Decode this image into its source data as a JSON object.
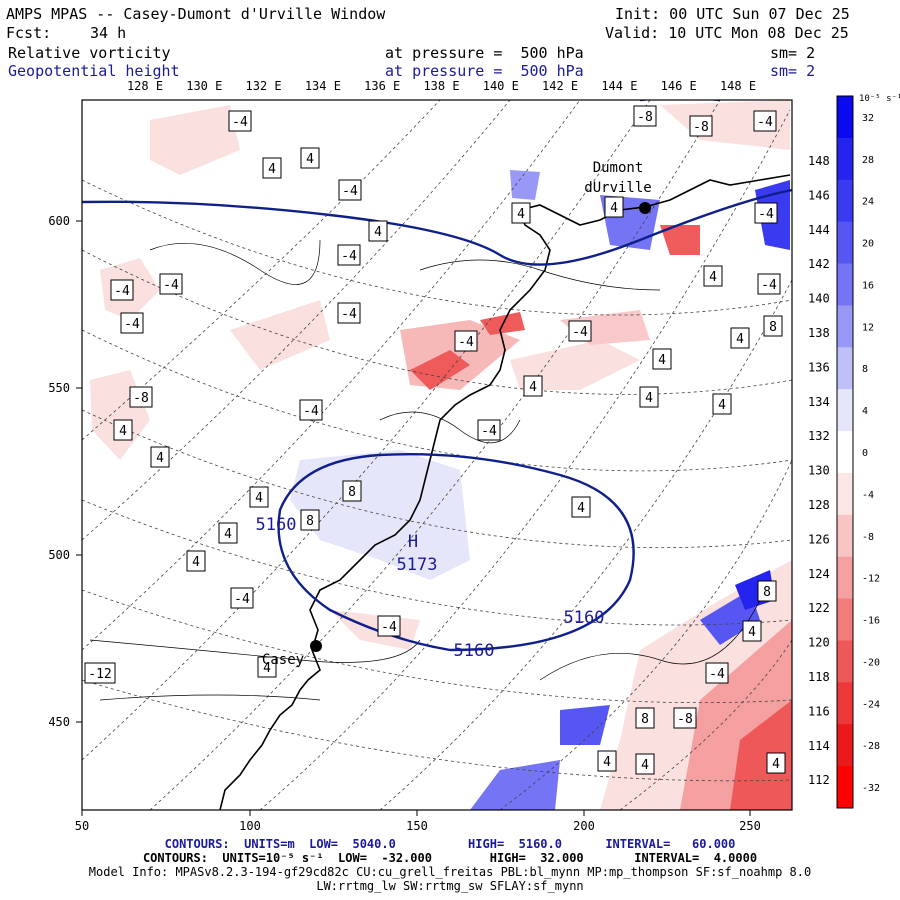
{
  "header": {
    "title": "AMPS MPAS -- Casey-Dumont d'Urville Window",
    "init": "Init: 00 UTC Sun 07 Dec 25",
    "fcst_label": "Fcst:",
    "fcst_value": "34 h",
    "valid": "Valid: 10 UTC Mon 08 Dec 25",
    "field1_name": "Relative vorticity",
    "field1_level": "at pressure =  500 hPa",
    "field1_sm": "sm= 2",
    "field2_name": "Geopotential height",
    "field2_level": "at pressure =  500 hPa",
    "field2_sm": "sm= 2"
  },
  "colors": {
    "blue_text": "#1a1a9a",
    "contour_navy": "#10208a",
    "pos_max": "#0000ee",
    "neg_max": "#ff0000"
  },
  "axes": {
    "x_ticks": [
      "50",
      "100",
      "150",
      "200",
      "250"
    ],
    "y_ticks": [
      "600",
      "550",
      "500",
      "450"
    ],
    "top_lon": [
      "128 E",
      "130 E",
      "132 E",
      "134 E",
      "136 E",
      "138 E",
      "140 E",
      "142 E",
      "144 E",
      "146 E",
      "148 E"
    ],
    "right_lon": [
      "148 E",
      "146 E",
      "144 E",
      "142 E",
      "140 E",
      "138 E",
      "136 E",
      "134 E",
      "132 E",
      "130 E",
      "128 E",
      "126 E",
      "124 E",
      "122 E",
      "120 E",
      "118 E",
      "116 E",
      "114 E",
      "112 E"
    ]
  },
  "colorbar": {
    "unit": "10⁻⁵ s⁻¹",
    "labels": [
      "32",
      "28",
      "24",
      "20",
      "16",
      "12",
      "8",
      "4",
      "0",
      "-4",
      "-8",
      "-12",
      "-16",
      "-20",
      "-24",
      "-28",
      "-32"
    ],
    "colors": [
      "#0a0aee",
      "#2424ee",
      "#3a3af0",
      "#5656f2",
      "#7474f4",
      "#9898f6",
      "#c0c0f8",
      "#e6e6fb",
      "#ffffff",
      "#fde6e6",
      "#f9c4c4",
      "#f5a0a0",
      "#f27c7c",
      "#ef5858",
      "#ec3838",
      "#ea1a1a",
      "#ff0000"
    ]
  },
  "stations": [
    {
      "name_line1": "Dumont",
      "name_line2": "dUrville"
    },
    {
      "name_line1": "Casey",
      "name_line2": ""
    }
  ],
  "height_contours": [
    "5160",
    "5173",
    "5160",
    "5160"
  ],
  "height_high_label": "H",
  "vorticity_labels": [
    "-8",
    "-4",
    "-8",
    "-4",
    "4",
    "4",
    "-4",
    "4",
    "4",
    "4",
    "-4",
    "-4",
    "4",
    "-4",
    "-4",
    "-4",
    "8",
    "-4",
    "-4",
    "-4",
    "-4",
    "4",
    "-8",
    "4",
    "4",
    "4",
    "-4",
    "-4",
    "4",
    "4",
    "4",
    "8",
    "8",
    "4",
    "4",
    "4",
    "4",
    "8",
    "-4",
    "-4",
    "4",
    "-4",
    "-8",
    "8",
    "4",
    "-12",
    "4",
    "4",
    "4"
  ],
  "footer": {
    "line1": "CONTOURS:  UNITS=m  LOW=  5040.0          HIGH=  5160.0      INTERVAL=   60.000",
    "line2": "CONTOURS:  UNITS=10⁻⁵ s⁻¹  LOW=  -32.000        HIGH=  32.000       INTERVAL=  4.0000",
    "line3": "Model Info: MPASv8.2.3-194-gf29cd82c CU:cu_grell_freitas PBL:bl_mynn MP:mp_thompson SF:sf_noahmp 8.0",
    "line4": "LW:rrtmg_lw SW:rrtmg_sw SFLAY:sf_mynn"
  }
}
